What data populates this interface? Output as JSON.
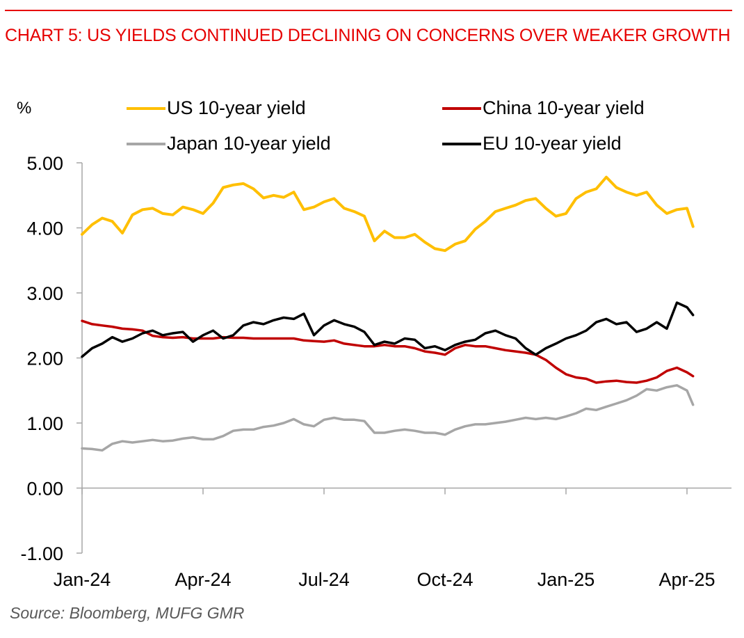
{
  "header": {
    "title": "CHART 5: US YIELDS CONTINUED DECLINING ON CONCERNS OVER WEAKER GROWTH"
  },
  "footer": {
    "source": "Source: Bloomberg, MUFG GMR"
  },
  "colors": {
    "title": "#e60000",
    "us": "#ffbf00",
    "china": "#c00000",
    "japan": "#a6a6a6",
    "eu": "#000000",
    "axis": "#a6a6a6"
  },
  "chart_data": {
    "type": "line",
    "title": "CHART 5: US YIELDS CONTINUED DECLINING ON CONCERNS OVER WEAKER GROWTH",
    "xlabel": "",
    "ylabel": "%",
    "ylim": [
      -1.0,
      5.0
    ],
    "yticks": [
      -1.0,
      0.0,
      1.0,
      2.0,
      3.0,
      4.0,
      5.0
    ],
    "ytick_labels": [
      "-1.00",
      "0.00",
      "1.00",
      "2.00",
      "3.00",
      "4.00",
      "5.00"
    ],
    "xlim": [
      "2024-01-01",
      "2025-04-15"
    ],
    "xticks": [
      "2024-01-01",
      "2024-04-01",
      "2024-07-01",
      "2024-10-01",
      "2025-01-01",
      "2025-04-01"
    ],
    "xtick_labels": [
      "Jan-24",
      "Apr-24",
      "Jul-24",
      "Oct-24",
      "Jan-25",
      "Apr-25"
    ],
    "grid": false,
    "legend": {
      "placement": "top",
      "columns": 2
    },
    "x_months_from_start": [
      0.0,
      0.25,
      0.5,
      0.75,
      1.0,
      1.25,
      1.5,
      1.75,
      2.0,
      2.25,
      2.5,
      2.75,
      3.0,
      3.25,
      3.5,
      3.75,
      4.0,
      4.25,
      4.5,
      4.75,
      5.0,
      5.25,
      5.5,
      5.75,
      6.0,
      6.25,
      6.5,
      6.75,
      7.0,
      7.25,
      7.5,
      7.75,
      8.0,
      8.25,
      8.5,
      8.75,
      9.0,
      9.25,
      9.5,
      9.75,
      10.0,
      10.25,
      10.5,
      10.75,
      11.0,
      11.25,
      11.5,
      11.75,
      12.0,
      12.25,
      12.5,
      12.75,
      13.0,
      13.25,
      13.5,
      13.75,
      14.0,
      14.25,
      14.5,
      14.75,
      15.0,
      15.15
    ],
    "series": [
      {
        "name": "US 10-year yield",
        "color": "#ffbf00",
        "values": [
          3.9,
          4.05,
          4.15,
          4.1,
          3.92,
          4.2,
          4.28,
          4.3,
          4.22,
          4.2,
          4.32,
          4.28,
          4.22,
          4.38,
          4.62,
          4.66,
          4.68,
          4.6,
          4.46,
          4.5,
          4.47,
          4.55,
          4.28,
          4.32,
          4.4,
          4.45,
          4.3,
          4.25,
          4.18,
          3.8,
          3.95,
          3.85,
          3.85,
          3.9,
          3.78,
          3.68,
          3.65,
          3.75,
          3.8,
          3.98,
          4.1,
          4.25,
          4.3,
          4.35,
          4.42,
          4.45,
          4.3,
          4.18,
          4.22,
          4.45,
          4.55,
          4.6,
          4.78,
          4.62,
          4.55,
          4.5,
          4.55,
          4.35,
          4.22,
          4.28,
          4.3,
          4.02
        ]
      },
      {
        "name": "China 10-year yield",
        "color": "#c00000",
        "values": [
          2.57,
          2.52,
          2.5,
          2.48,
          2.45,
          2.44,
          2.42,
          2.34,
          2.32,
          2.31,
          2.32,
          2.3,
          2.3,
          2.3,
          2.32,
          2.31,
          2.31,
          2.3,
          2.3,
          2.3,
          2.3,
          2.3,
          2.27,
          2.26,
          2.25,
          2.27,
          2.22,
          2.2,
          2.18,
          2.18,
          2.2,
          2.18,
          2.18,
          2.15,
          2.1,
          2.08,
          2.05,
          2.15,
          2.2,
          2.18,
          2.18,
          2.15,
          2.12,
          2.1,
          2.08,
          2.05,
          1.97,
          1.85,
          1.75,
          1.7,
          1.68,
          1.62,
          1.64,
          1.65,
          1.63,
          1.62,
          1.65,
          1.7,
          1.8,
          1.85,
          1.78,
          1.72
        ]
      },
      {
        "name": "Japan 10-year yield",
        "color": "#a6a6a6",
        "values": [
          0.61,
          0.6,
          0.58,
          0.68,
          0.72,
          0.7,
          0.72,
          0.74,
          0.72,
          0.73,
          0.76,
          0.78,
          0.75,
          0.75,
          0.8,
          0.88,
          0.9,
          0.9,
          0.94,
          0.96,
          1.0,
          1.06,
          0.98,
          0.95,
          1.05,
          1.08,
          1.05,
          1.05,
          1.03,
          0.85,
          0.85,
          0.88,
          0.9,
          0.88,
          0.85,
          0.85,
          0.82,
          0.9,
          0.95,
          0.98,
          0.98,
          1.0,
          1.02,
          1.05,
          1.08,
          1.06,
          1.08,
          1.06,
          1.1,
          1.15,
          1.22,
          1.2,
          1.25,
          1.3,
          1.35,
          1.42,
          1.52,
          1.5,
          1.55,
          1.58,
          1.5,
          1.28
        ]
      },
      {
        "name": "EU 10-year yield",
        "color": "#000000",
        "values": [
          2.02,
          2.15,
          2.22,
          2.32,
          2.25,
          2.3,
          2.38,
          2.42,
          2.35,
          2.38,
          2.4,
          2.25,
          2.35,
          2.42,
          2.3,
          2.35,
          2.5,
          2.55,
          2.52,
          2.58,
          2.62,
          2.6,
          2.68,
          2.35,
          2.5,
          2.58,
          2.52,
          2.48,
          2.4,
          2.2,
          2.25,
          2.22,
          2.3,
          2.28,
          2.15,
          2.18,
          2.12,
          2.2,
          2.25,
          2.28,
          2.38,
          2.42,
          2.35,
          2.3,
          2.15,
          2.05,
          2.15,
          2.22,
          2.3,
          2.35,
          2.42,
          2.55,
          2.6,
          2.52,
          2.55,
          2.4,
          2.45,
          2.55,
          2.45,
          2.85,
          2.78,
          2.66
        ]
      }
    ]
  }
}
